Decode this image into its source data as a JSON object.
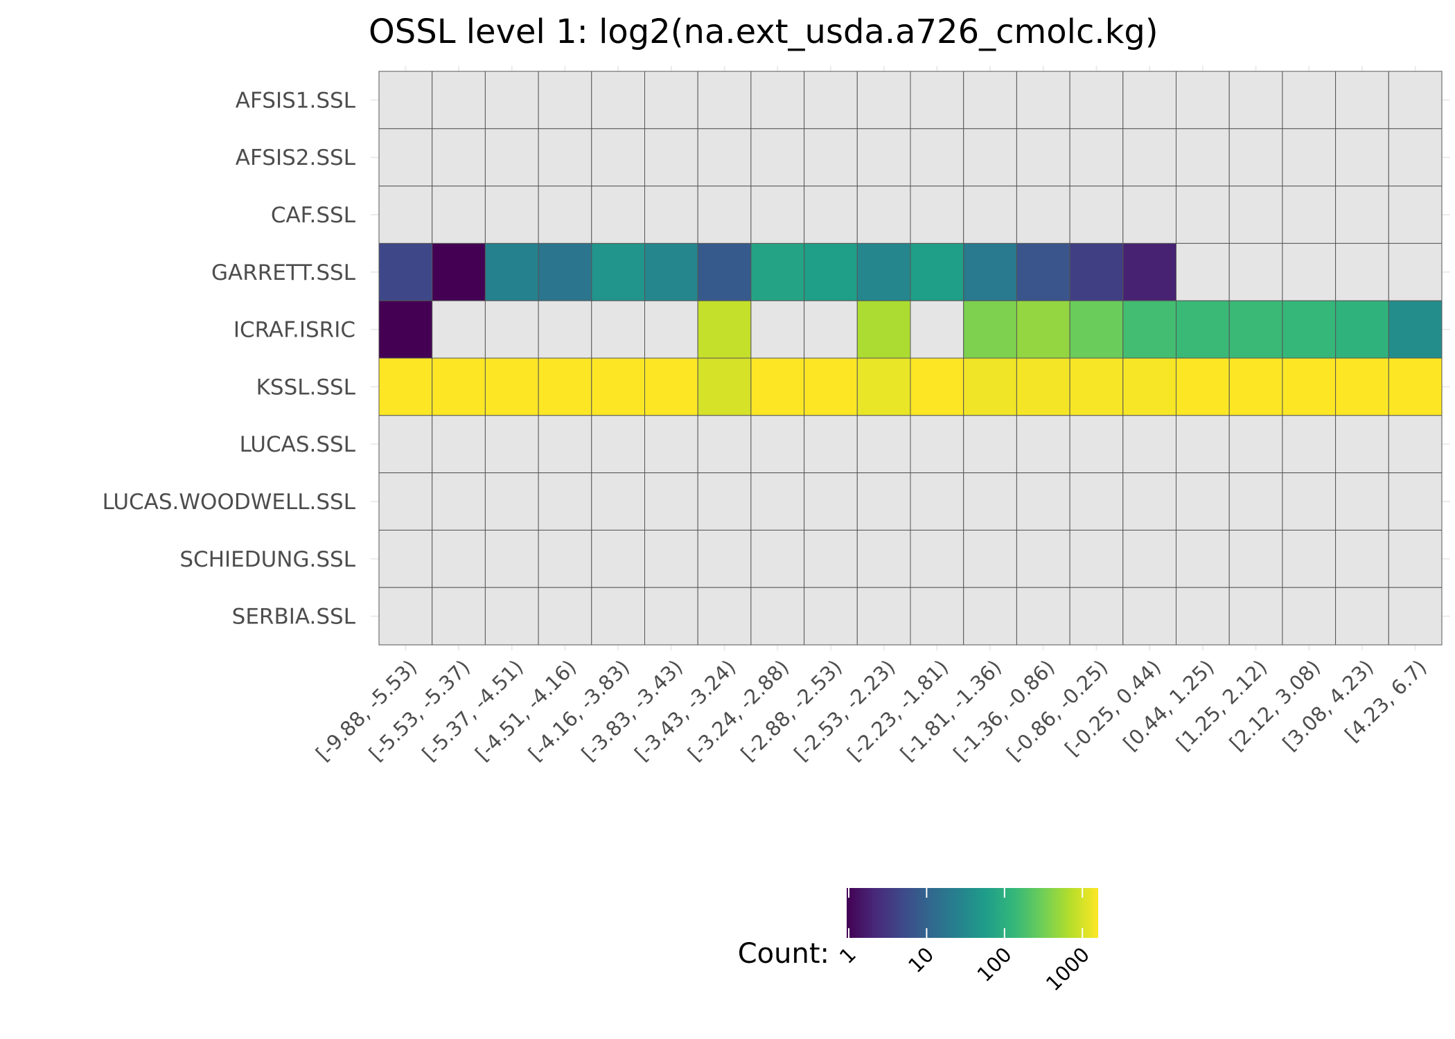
{
  "chart_data": {
    "type": "heatmap",
    "title": "OSSL level 1: log2(na.ext_usda.a726_cmolc.kg)",
    "rows": [
      "AFSIS1.SSL",
      "AFSIS2.SSL",
      "CAF.SSL",
      "GARRETT.SSL",
      "ICRAF.ISRIC",
      "KSSL.SSL",
      "LUCAS.SSL",
      "LUCAS.WOODWELL.SSL",
      "SCHIEDUNG.SSL",
      "SERBIA.SSL"
    ],
    "columns": [
      "[-9.88, -5.53)",
      "[-5.53, -5.37)",
      "[-5.37, -4.51)",
      "[-4.51, -4.16)",
      "[-4.16, -3.83)",
      "[-3.83, -3.43)",
      "[-3.43, -3.24)",
      "[-3.24, -2.88)",
      "[-2.88, -2.53)",
      "[-2.53, -2.23)",
      "[-2.23, -1.81)",
      "[-1.81, -1.36)",
      "[-1.36, -0.86)",
      "[-0.86, -0.25)",
      "[-0.25, 0.44)",
      "[0.44, 1.25)",
      "[1.25, 2.12)",
      "[2.12, 3.08)",
      "[3.08, 4.23)",
      "[4.23, 6.7)"
    ],
    "counts": [
      [
        null,
        null,
        null,
        null,
        null,
        null,
        null,
        null,
        null,
        null,
        null,
        null,
        null,
        null,
        null,
        null,
        null,
        null,
        null,
        null
      ],
      [
        null,
        null,
        null,
        null,
        null,
        null,
        null,
        null,
        null,
        null,
        null,
        null,
        null,
        null,
        null,
        null,
        null,
        null,
        null,
        null
      ],
      [
        null,
        null,
        null,
        null,
        null,
        null,
        null,
        null,
        null,
        null,
        null,
        null,
        null,
        null,
        null,
        null,
        null,
        null,
        null,
        null
      ],
      [
        5,
        1,
        25,
        18,
        45,
        30,
        8,
        70,
        60,
        30,
        60,
        20,
        7,
        4,
        2,
        null,
        null,
        null,
        null,
        null
      ],
      [
        1,
        null,
        null,
        null,
        null,
        null,
        800,
        null,
        null,
        600,
        null,
        350,
        450,
        280,
        160,
        140,
        140,
        130,
        110,
        35
      ],
      [
        1500,
        1500,
        1500,
        1500,
        1500,
        1500,
        950,
        1500,
        1500,
        1200,
        1500,
        1300,
        1350,
        1400,
        1400,
        1500,
        1500,
        1500,
        1500,
        1500
      ],
      [
        null,
        null,
        null,
        null,
        null,
        null,
        null,
        null,
        null,
        null,
        null,
        null,
        null,
        null,
        null,
        null,
        null,
        null,
        null,
        null
      ],
      [
        null,
        null,
        null,
        null,
        null,
        null,
        null,
        null,
        null,
        null,
        null,
        null,
        null,
        null,
        null,
        null,
        null,
        null,
        null,
        null
      ],
      [
        null,
        null,
        null,
        null,
        null,
        null,
        null,
        null,
        null,
        null,
        null,
        null,
        null,
        null,
        null,
        null,
        null,
        null,
        null,
        null
      ],
      [
        null,
        null,
        null,
        null,
        null,
        null,
        null,
        null,
        null,
        null,
        null,
        null,
        null,
        null,
        null,
        null,
        null,
        null,
        null,
        null
      ]
    ],
    "color_scale": {
      "name": "viridis",
      "scale": "log10",
      "min": 1,
      "max": 1500,
      "missing_color": "#e5e5e5",
      "stops": [
        "#440154",
        "#482878",
        "#3e4989",
        "#31688e",
        "#26828e",
        "#1f9e89",
        "#35b779",
        "#6ece58",
        "#b5de2b",
        "#fde725"
      ]
    },
    "legend": {
      "title": "Count:",
      "position": "bottom",
      "ticks": [
        {
          "value": 1,
          "label": "1"
        },
        {
          "value": 10,
          "label": "10"
        },
        {
          "value": 100,
          "label": "100"
        },
        {
          "value": 1000,
          "label": "1000"
        }
      ]
    },
    "grid": true
  }
}
